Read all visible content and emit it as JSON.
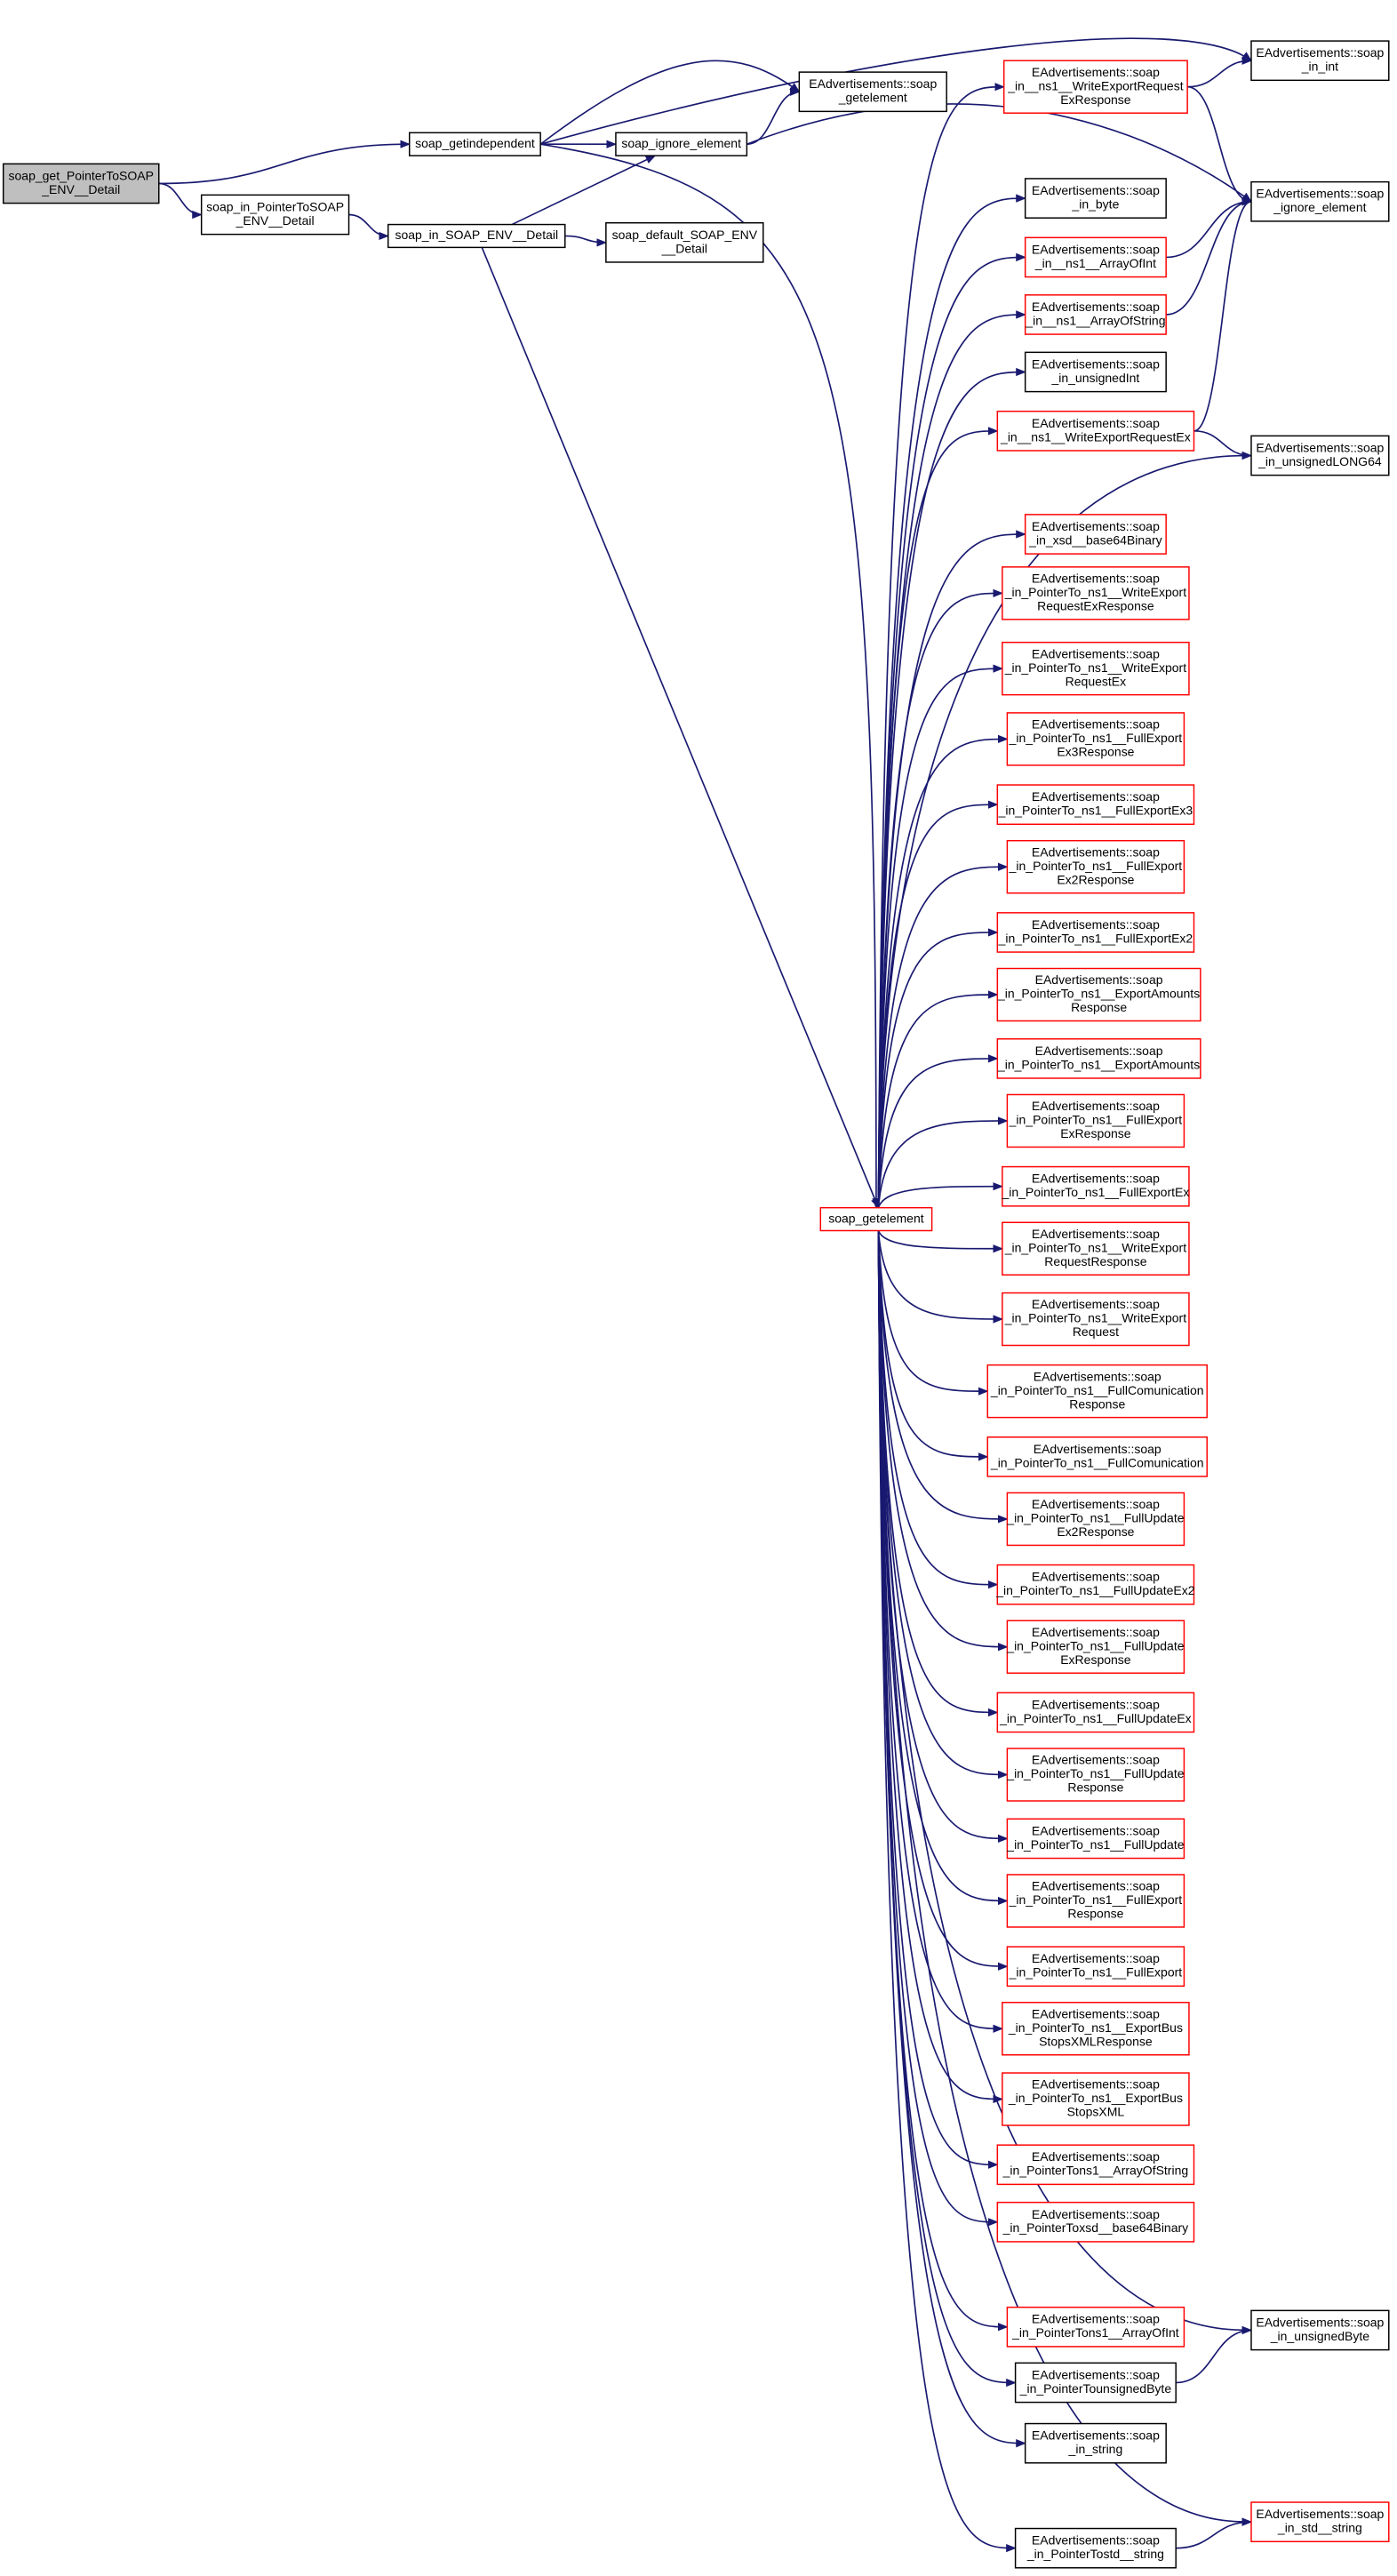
{
  "nodes": [
    {
      "lines": [
        "soap_get_PointerToSOAP",
        "_ENV__Detail"
      ]
    },
    {
      "lines": [
        "soap_getindependent"
      ]
    },
    {
      "lines": [
        "soap_in_PointerToSOAP",
        "_ENV__Detail"
      ]
    },
    {
      "lines": [
        "soap_in_SOAP_ENV__Detail"
      ]
    },
    {
      "lines": [
        "EAdvertisements::soap",
        "_getelement"
      ]
    },
    {
      "lines": [
        "soap_ignore_element"
      ]
    },
    {
      "lines": [
        "soap_default_SOAP_ENV",
        "__Detail"
      ]
    },
    {
      "lines": [
        "soap_getelement"
      ]
    },
    {
      "lines": [
        "EAdvertisements::soap",
        "_in__ns1__WriteExportRequest",
        "ExResponse"
      ]
    },
    {
      "lines": [
        "EAdvertisements::soap",
        "_in_byte"
      ]
    },
    {
      "lines": [
        "EAdvertisements::soap",
        "_in__ns1__ArrayOfInt"
      ]
    },
    {
      "lines": [
        "EAdvertisements::soap",
        "_in__ns1__ArrayOfString"
      ]
    },
    {
      "lines": [
        "EAdvertisements::soap",
        "_in_unsignedInt"
      ]
    },
    {
      "lines": [
        "EAdvertisements::soap",
        "_in__ns1__WriteExportRequestEx"
      ]
    },
    {
      "lines": [
        "EAdvertisements::soap",
        "_in_xsd__base64Binary"
      ]
    },
    {
      "lines": [
        "EAdvertisements::soap",
        "_in_PointerTo_ns1__WriteExport",
        "RequestExResponse"
      ]
    },
    {
      "lines": [
        "EAdvertisements::soap",
        "_in_PointerTo_ns1__WriteExport",
        "RequestEx"
      ]
    },
    {
      "lines": [
        "EAdvertisements::soap",
        "_in_PointerTo_ns1__FullExport",
        "Ex3Response"
      ]
    },
    {
      "lines": [
        "EAdvertisements::soap",
        "_in_PointerTo_ns1__FullExportEx3"
      ]
    },
    {
      "lines": [
        "EAdvertisements::soap",
        "_in_PointerTo_ns1__FullExport",
        "Ex2Response"
      ]
    },
    {
      "lines": [
        "EAdvertisements::soap",
        "_in_PointerTo_ns1__FullExportEx2"
      ]
    },
    {
      "lines": [
        "EAdvertisements::soap",
        "_in_PointerTo_ns1__ExportAmounts",
        "Response"
      ]
    },
    {
      "lines": [
        "EAdvertisements::soap",
        "_in_PointerTo_ns1__ExportAmounts"
      ]
    },
    {
      "lines": [
        "EAdvertisements::soap",
        "_in_PointerTo_ns1__FullExport",
        "ExResponse"
      ]
    },
    {
      "lines": [
        "EAdvertisements::soap",
        "_in_PointerTo_ns1__FullExportEx"
      ]
    },
    {
      "lines": [
        "EAdvertisements::soap",
        "_in_PointerTo_ns1__WriteExport",
        "RequestResponse"
      ]
    },
    {
      "lines": [
        "EAdvertisements::soap",
        "_in_PointerTo_ns1__WriteExport",
        "Request"
      ]
    },
    {
      "lines": [
        "EAdvertisements::soap",
        "_in_PointerTo_ns1__FullComunication",
        "Response"
      ]
    },
    {
      "lines": [
        "EAdvertisements::soap",
        "_in_PointerTo_ns1__FullComunication"
      ]
    },
    {
      "lines": [
        "EAdvertisements::soap",
        "_in_PointerTo_ns1__FullUpdate",
        "Ex2Response"
      ]
    },
    {
      "lines": [
        "EAdvertisements::soap",
        "_in_PointerTo_ns1__FullUpdateEx2"
      ]
    },
    {
      "lines": [
        "EAdvertisements::soap",
        "_in_PointerTo_ns1__FullUpdate",
        "ExResponse"
      ]
    },
    {
      "lines": [
        "EAdvertisements::soap",
        "_in_PointerTo_ns1__FullUpdateEx"
      ]
    },
    {
      "lines": [
        "EAdvertisements::soap",
        "_in_PointerTo_ns1__FullUpdate",
        "Response"
      ]
    },
    {
      "lines": [
        "EAdvertisements::soap",
        "_in_PointerTo_ns1__FullUpdate"
      ]
    },
    {
      "lines": [
        "EAdvertisements::soap",
        "_in_PointerTo_ns1__FullExport",
        "Response"
      ]
    },
    {
      "lines": [
        "EAdvertisements::soap",
        "_in_PointerTo_ns1__FullExport"
      ]
    },
    {
      "lines": [
        "EAdvertisements::soap",
        "_in_PointerTo_ns1__ExportBus",
        "StopsXMLResponse"
      ]
    },
    {
      "lines": [
        "EAdvertisements::soap",
        "_in_PointerTo_ns1__ExportBus",
        "StopsXML"
      ]
    },
    {
      "lines": [
        "EAdvertisements::soap",
        "_in_PointerTons1__ArrayOfString"
      ]
    },
    {
      "lines": [
        "EAdvertisements::soap",
        "_in_PointerToxsd__base64Binary"
      ]
    },
    {
      "lines": [
        "EAdvertisements::soap",
        "_in_PointerTons1__ArrayOfInt"
      ]
    },
    {
      "lines": [
        "EAdvertisements::soap",
        "_in_PointerTounsignedByte"
      ]
    },
    {
      "lines": [
        "EAdvertisements::soap",
        "_in_string"
      ]
    },
    {
      "lines": [
        "EAdvertisements::soap",
        "_in_PointerTostd__string"
      ]
    },
    {
      "lines": [
        "EAdvertisements::soap",
        "_in_int"
      ]
    },
    {
      "lines": [
        "EAdvertisements::soap",
        "_ignore_element"
      ]
    },
    {
      "lines": [
        "EAdvertisements::soap",
        "_in_unsignedLONG64"
      ]
    },
    {
      "lines": [
        "EAdvertisements::soap",
        "_in_unsignedByte"
      ]
    },
    {
      "lines": [
        "EAdvertisements::soap",
        "_in_std__string"
      ]
    }
  ]
}
